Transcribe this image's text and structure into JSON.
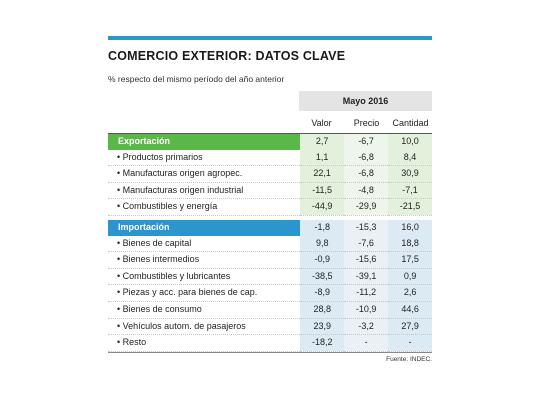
{
  "title": "COMERCIO EXTERIOR: DATOS CLAVE",
  "subtitle": "% respecto del mismo período del año anterior",
  "period": "Mayo 2016",
  "columns": [
    "Valor",
    "Precio",
    "Cantidad"
  ],
  "sections": [
    {
      "name": "Exportación",
      "total": [
        "2,7",
        "-6,7",
        "10,0"
      ],
      "rows": [
        {
          "label": "• Productos primarios",
          "values": [
            "1,1",
            "-6,8",
            "8,4"
          ]
        },
        {
          "label": "• Manufacturas origen agropec.",
          "values": [
            "22,1",
            "-6,8",
            "30,9"
          ]
        },
        {
          "label": "• Manufacturas origen industrial",
          "values": [
            "-11,5",
            "-4,8",
            "-7,1"
          ]
        },
        {
          "label": "• Combustibles y energía",
          "values": [
            "-44,9",
            "-29,9",
            "-21,5"
          ]
        }
      ]
    },
    {
      "name": "Importación",
      "total": [
        "-1,8",
        "-15,3",
        "16,0"
      ],
      "rows": [
        {
          "label": "• Bienes de capital",
          "values": [
            "9,8",
            "-7,6",
            "18,8"
          ]
        },
        {
          "label": "• Bienes intermedios",
          "values": [
            "-0,9",
            "-15,6",
            "17,5"
          ]
        },
        {
          "label": "• Combustibles y lubricantes",
          "values": [
            "-38,5",
            "-39,1",
            "0,9"
          ]
        },
        {
          "label": "• Piezas y acc. para bienes de cap.",
          "values": [
            "-8,9",
            "-11,2",
            "2,6"
          ]
        },
        {
          "label": "• Bienes de consumo",
          "values": [
            "28,8",
            "-10,9",
            "44,6"
          ]
        },
        {
          "label": "• Vehículos autom. de pasajeros",
          "values": [
            "23,9",
            "-3,2",
            "27,9"
          ]
        },
        {
          "label": "• Resto",
          "values": [
            "-18,2",
            "-",
            "-"
          ]
        }
      ]
    }
  ],
  "source": "Fuente: INDEC."
}
